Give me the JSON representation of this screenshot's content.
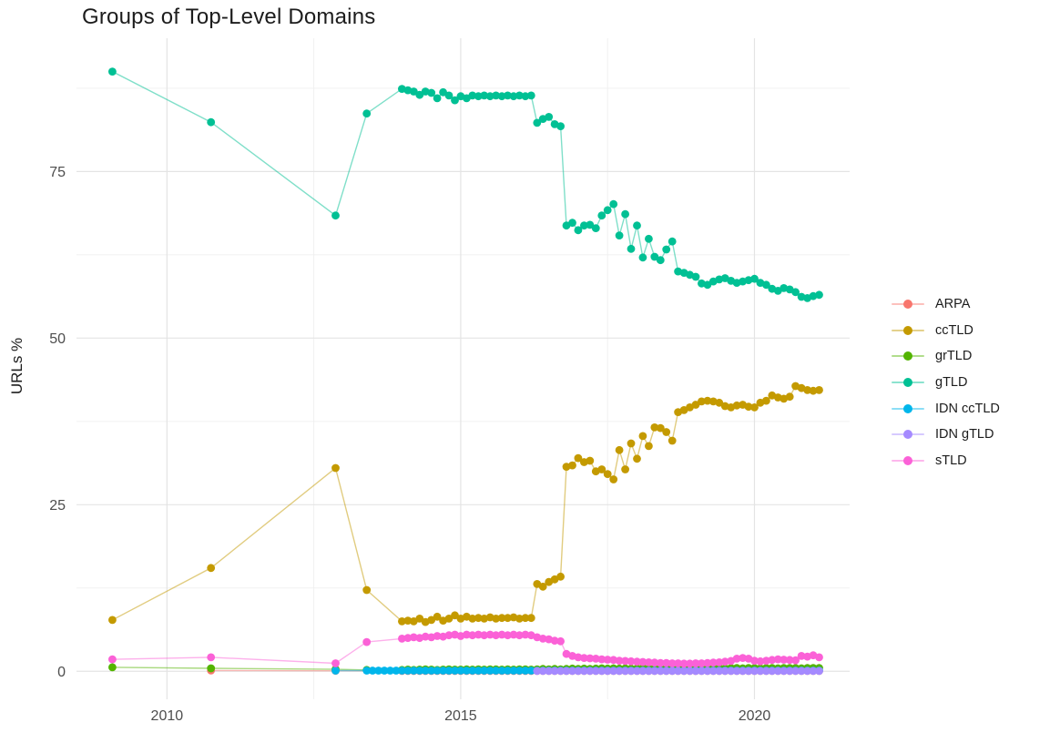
{
  "title": "Groups of Top-Level Domains",
  "axes": {
    "y_title": "URLs %",
    "x_tick_labels": [
      "2010",
      "2015",
      "2020"
    ],
    "y_tick_labels": [
      "0",
      "25",
      "50",
      "75"
    ],
    "tick_color": "#4d4d4d"
  },
  "legend": {
    "position": "right",
    "entries": [
      {
        "label": "ARPA",
        "color": "#F8766D"
      },
      {
        "label": "ccTLD",
        "color": "#C49A00"
      },
      {
        "label": "grTLD",
        "color": "#53B400"
      },
      {
        "label": "gTLD",
        "color": "#00C094"
      },
      {
        "label": "IDN ccTLD",
        "color": "#00B6EB"
      },
      {
        "label": "IDN gTLD",
        "color": "#A58AFF"
      },
      {
        "label": "sTLD",
        "color": "#FB61D7"
      }
    ]
  },
  "chart_data": {
    "type": "line",
    "title": "Groups of Top-Level Domains",
    "xlabel": "",
    "ylabel": "URLs %",
    "grid": true,
    "legend_position": "right",
    "xlim": [
      2008.46,
      2021.62
    ],
    "ylim": [
      -4.2,
      95.0
    ],
    "x_ticks": [
      2010,
      2015,
      2020
    ],
    "x_minor": [
      2012.5,
      2017.5
    ],
    "y_ticks": [
      0,
      25,
      50,
      75
    ],
    "y_minor": [
      12.5,
      37.5,
      62.5,
      87.5
    ],
    "grid_major_color": "#e4e4e4",
    "grid_minor_color": "#efefef",
    "series": [
      {
        "name": "ARPA",
        "color": "#F8766D",
        "points": [
          [
            2010.75,
            0.12
          ],
          [
            2012.87,
            0.08
          ]
        ],
        "dense": {
          "start": 2014.0,
          "step": 0.1,
          "count": 72,
          "value": 0.05
        }
      },
      {
        "name": "ccTLD",
        "color": "#C49A00",
        "points": [
          [
            2009.07,
            7.7
          ],
          [
            2010.75,
            15.5
          ],
          [
            2012.87,
            30.5
          ],
          [
            2013.4,
            12.2
          ]
        ],
        "dense": {
          "start": 2014.0,
          "step": 0.1,
          "values": [
            7.5,
            7.6,
            7.5,
            7.9,
            7.4,
            7.7,
            8.2,
            7.6,
            7.9,
            8.4,
            7.9,
            8.2,
            7.9,
            8.0,
            7.9,
            8.1,
            7.9,
            8.0,
            8.0,
            8.1,
            7.9,
            8.0,
            8.0,
            13.1,
            12.7,
            13.4,
            13.8,
            14.2,
            30.7,
            30.9,
            32.0,
            31.4,
            31.6,
            30.0,
            30.3,
            29.6,
            28.8,
            33.2,
            30.3,
            34.2,
            31.9,
            35.3,
            33.8,
            36.6,
            36.5,
            35.9,
            34.6,
            38.9,
            39.2,
            39.6,
            40.0,
            40.5,
            40.6,
            40.5,
            40.3,
            39.8,
            39.6,
            39.9,
            40.0,
            39.7,
            39.6,
            40.3,
            40.6,
            41.4,
            41.1,
            40.9,
            41.2,
            42.8,
            42.5,
            42.2,
            42.1,
            42.2
          ]
        }
      },
      {
        "name": "grTLD",
        "color": "#53B400",
        "points": [
          [
            2009.07,
            0.6
          ],
          [
            2010.75,
            0.45
          ],
          [
            2012.87,
            0.3
          ],
          [
            2013.4,
            0.2
          ]
        ],
        "dense": {
          "start": 2014.0,
          "step": 0.1,
          "values": [
            0.2,
            0.25,
            0.2,
            0.25,
            0.3,
            0.25,
            0.2,
            0.25,
            0.3,
            0.25,
            0.25,
            0.3,
            0.25,
            0.3,
            0.25,
            0.3,
            0.3,
            0.25,
            0.3,
            0.25,
            0.3,
            0.3,
            0.25,
            0.3,
            0.35,
            0.3,
            0.35,
            0.3,
            0.35,
            0.4,
            0.35,
            0.4,
            0.35,
            0.4,
            0.45,
            0.4,
            0.45,
            0.4,
            0.45,
            0.4,
            0.45,
            0.5,
            0.45,
            0.4,
            0.45,
            0.5,
            0.45,
            0.5,
            0.45,
            0.5,
            0.45,
            0.5,
            0.5,
            0.45,
            0.5,
            0.45,
            0.5,
            0.5,
            0.45,
            0.5,
            0.5,
            0.45,
            0.5,
            0.5,
            0.45,
            0.5,
            0.5,
            0.5,
            0.45,
            0.5,
            0.5,
            0.5
          ]
        }
      },
      {
        "name": "gTLD",
        "color": "#00C094",
        "points": [
          [
            2009.07,
            90.0
          ],
          [
            2010.75,
            82.4
          ],
          [
            2012.87,
            68.4
          ],
          [
            2013.4,
            83.7
          ]
        ],
        "dense": {
          "start": 2014.0,
          "step": 0.1,
          "values": [
            87.4,
            87.2,
            87.0,
            86.5,
            87.0,
            86.8,
            86.0,
            86.9,
            86.4,
            85.7,
            86.3,
            86.0,
            86.4,
            86.3,
            86.4,
            86.3,
            86.4,
            86.3,
            86.4,
            86.3,
            86.4,
            86.3,
            86.4,
            82.3,
            82.9,
            83.2,
            82.1,
            81.8,
            66.9,
            67.3,
            66.2,
            66.9,
            67.0,
            66.5,
            68.4,
            69.2,
            70.1,
            65.4,
            68.6,
            63.4,
            66.9,
            62.1,
            64.9,
            62.2,
            61.7,
            63.3,
            64.5,
            60.0,
            59.8,
            59.5,
            59.2,
            58.2,
            58.0,
            58.5,
            58.8,
            59.0,
            58.6,
            58.3,
            58.5,
            58.7,
            58.9,
            58.3,
            58.0,
            57.4,
            57.1,
            57.5,
            57.3,
            56.9,
            56.2,
            56.0,
            56.3,
            56.5
          ]
        }
      },
      {
        "name": "IDN ccTLD",
        "color": "#00B6EB",
        "points": [
          [
            2012.87,
            0.1
          ]
        ],
        "dense": {
          "start": 2013.4,
          "step": 0.1,
          "count": 78,
          "value": 0.1
        }
      },
      {
        "name": "IDN gTLD",
        "color": "#A58AFF",
        "points": [],
        "dense": {
          "start": 2016.3,
          "step": 0.1,
          "count": 49,
          "value": 0.05
        }
      },
      {
        "name": "sTLD",
        "color": "#FB61D7",
        "points": [
          [
            2009.07,
            1.8
          ],
          [
            2010.75,
            2.1
          ],
          [
            2012.87,
            1.2
          ],
          [
            2013.4,
            4.4
          ]
        ],
        "dense": {
          "start": 2014.0,
          "step": 0.1,
          "values": [
            4.9,
            5.0,
            5.1,
            5.0,
            5.2,
            5.1,
            5.3,
            5.2,
            5.4,
            5.5,
            5.3,
            5.5,
            5.4,
            5.5,
            5.4,
            5.5,
            5.4,
            5.5,
            5.4,
            5.5,
            5.4,
            5.5,
            5.4,
            5.1,
            4.9,
            4.8,
            4.6,
            4.5,
            2.6,
            2.3,
            2.1,
            2.0,
            1.95,
            1.9,
            1.8,
            1.75,
            1.7,
            1.6,
            1.55,
            1.5,
            1.45,
            1.4,
            1.35,
            1.3,
            1.25,
            1.25,
            1.2,
            1.2,
            1.15,
            1.15,
            1.2,
            1.2,
            1.25,
            1.3,
            1.35,
            1.45,
            1.55,
            1.9,
            2.0,
            1.9,
            1.6,
            1.5,
            1.6,
            1.7,
            1.8,
            1.75,
            1.7,
            1.65,
            2.3,
            2.2,
            2.4,
            2.1
          ]
        }
      }
    ]
  }
}
